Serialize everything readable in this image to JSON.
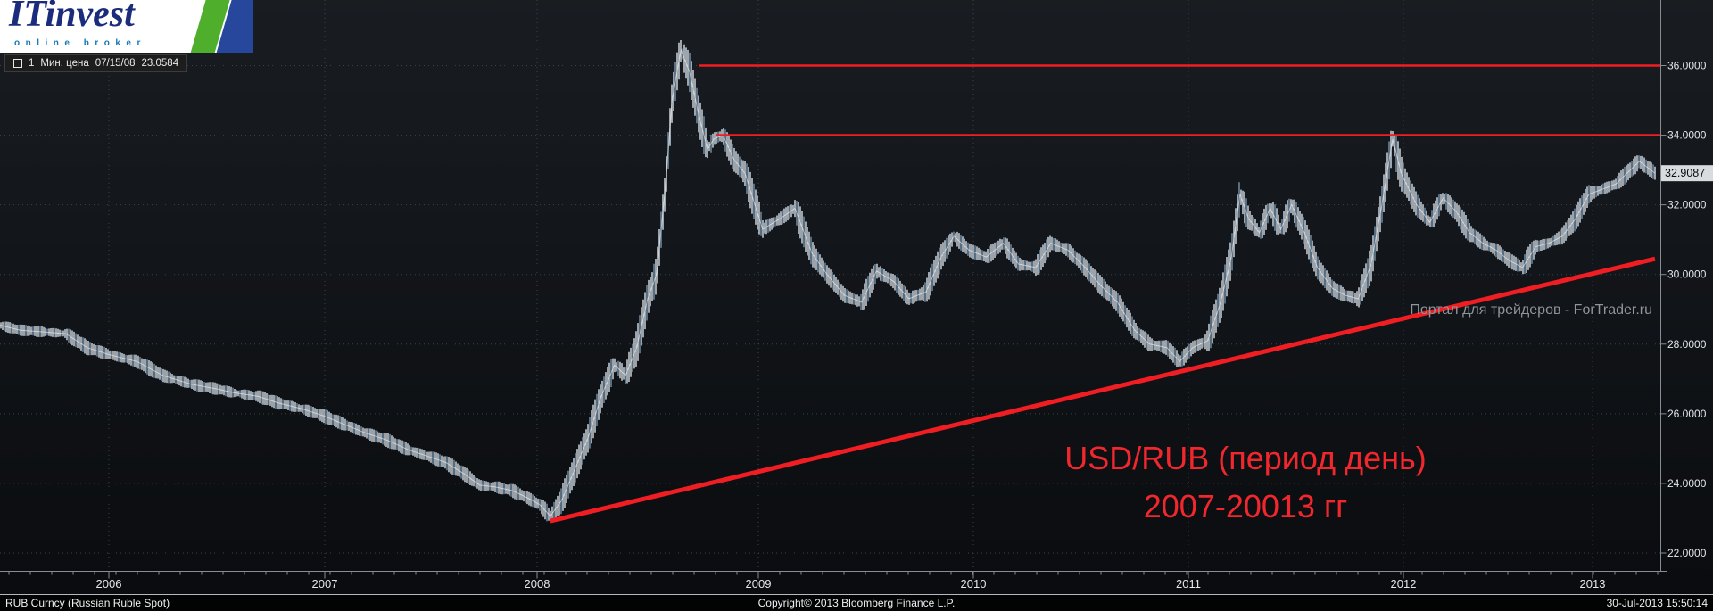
{
  "header": {
    "logo": {
      "title": "ITinvest",
      "subtitle": "online broker"
    },
    "info_bar": {
      "index": "1",
      "label": "Мин. цена",
      "date": "07/15/08",
      "value": "23.0584"
    }
  },
  "watermark": {
    "text": "Портал для трейдеров - ForTrader.ru"
  },
  "annotation": {
    "line1": "USD/RUB (период день)",
    "line2": "2007-20013 гг"
  },
  "footer": {
    "left": "RUB Curncy (Russian Ruble Spot)",
    "center": "Copyright© 2013 Bloomberg Finance L.P.",
    "right": "30-Jul-2013 15:50:14"
  },
  "colors": {
    "accent_red": "#f01d23",
    "bar_light": "#e8f1f8",
    "bar_blue": "#8db4d6",
    "grid": "#3d4249",
    "axis": "#878d94",
    "tick_text": "#e4e7ea",
    "watermark": "#8f969c",
    "label_bg": "#d8dcdf"
  },
  "chart_data": {
    "type": "line",
    "title": "USD/RUB (период день) 2007-20013 гг",
    "instrument": "RUB Curncy (Russian Ruble Spot)",
    "x_ticks": [
      "2006",
      "2007",
      "2008",
      "2009",
      "2010",
      "2011",
      "2012",
      "2013"
    ],
    "y_ticks": [
      "22.0000",
      "24.0000",
      "26.0000",
      "28.0000",
      "30.0000",
      "32.0000",
      "34.0000",
      "36.0000"
    ],
    "ylim": [
      21.5,
      37.9
    ],
    "grid": "dotted",
    "legend_position": "none",
    "last_price": "32.9087",
    "min_annotation": {
      "date": "07/15/08",
      "value": 23.0584
    },
    "resistance_levels": [
      {
        "level": 36.0,
        "start_year": 2009.23
      },
      {
        "level": 34.0,
        "start_year": 2009.31
      }
    ],
    "trendline": {
      "from": {
        "year": 2008.56,
        "value": 22.92
      },
      "to": {
        "year": 2013.58,
        "value": 30.45
      }
    },
    "series": [
      {
        "name": "USD/RUB",
        "points": [
          [
            2005.99,
            28.55
          ],
          [
            2006.09,
            28.4
          ],
          [
            2006.2,
            28.35
          ],
          [
            2006.3,
            28.3
          ],
          [
            2006.4,
            27.9
          ],
          [
            2006.5,
            27.7
          ],
          [
            2006.63,
            27.5
          ],
          [
            2006.75,
            27.1
          ],
          [
            2006.88,
            26.85
          ],
          [
            2007.01,
            26.7
          ],
          [
            2007.08,
            26.6
          ],
          [
            2007.19,
            26.5
          ],
          [
            2007.29,
            26.3
          ],
          [
            2007.39,
            26.15
          ],
          [
            2007.49,
            25.95
          ],
          [
            2007.59,
            25.7
          ],
          [
            2007.69,
            25.45
          ],
          [
            2007.79,
            25.25
          ],
          [
            2007.9,
            24.95
          ],
          [
            2008.0,
            24.75
          ],
          [
            2008.07,
            24.6
          ],
          [
            2008.15,
            24.3
          ],
          [
            2008.23,
            23.95
          ],
          [
            2008.3,
            23.9
          ],
          [
            2008.38,
            23.8
          ],
          [
            2008.45,
            23.6
          ],
          [
            2008.51,
            23.4
          ],
          [
            2008.56,
            23.06
          ],
          [
            2008.61,
            23.5
          ],
          [
            2008.67,
            24.4
          ],
          [
            2008.73,
            25.3
          ],
          [
            2008.79,
            26.5
          ],
          [
            2008.85,
            27.4
          ],
          [
            2008.9,
            27.1
          ],
          [
            2008.95,
            27.9
          ],
          [
            2009.0,
            29.3
          ],
          [
            2009.04,
            30.0
          ],
          [
            2009.08,
            32.5
          ],
          [
            2009.11,
            35.0
          ],
          [
            2009.15,
            36.45
          ],
          [
            2009.19,
            35.8
          ],
          [
            2009.23,
            34.6
          ],
          [
            2009.27,
            33.6
          ],
          [
            2009.3,
            33.9
          ],
          [
            2009.34,
            34.0
          ],
          [
            2009.39,
            33.3
          ],
          [
            2009.44,
            32.9
          ],
          [
            2009.52,
            31.3
          ],
          [
            2009.6,
            31.6
          ],
          [
            2009.67,
            31.9
          ],
          [
            2009.75,
            30.6
          ],
          [
            2009.82,
            30.0
          ],
          [
            2009.9,
            29.4
          ],
          [
            2009.98,
            29.2
          ],
          [
            2010.05,
            30.1
          ],
          [
            2010.13,
            29.8
          ],
          [
            2010.2,
            29.3
          ],
          [
            2010.28,
            29.5
          ],
          [
            2010.35,
            30.5
          ],
          [
            2010.41,
            31.1
          ],
          [
            2010.48,
            30.7
          ],
          [
            2010.56,
            30.5
          ],
          [
            2010.64,
            30.9
          ],
          [
            2010.71,
            30.3
          ],
          [
            2010.79,
            30.2
          ],
          [
            2010.86,
            30.9
          ],
          [
            2010.94,
            30.7
          ],
          [
            2011.02,
            30.2
          ],
          [
            2011.09,
            29.7
          ],
          [
            2011.17,
            29.2
          ],
          [
            2011.25,
            28.4
          ],
          [
            2011.32,
            28.0
          ],
          [
            2011.4,
            27.9
          ],
          [
            2011.46,
            27.5
          ],
          [
            2011.52,
            27.9
          ],
          [
            2011.59,
            28.1
          ],
          [
            2011.65,
            29.2
          ],
          [
            2011.7,
            30.5
          ],
          [
            2011.74,
            32.3
          ],
          [
            2011.78,
            31.6
          ],
          [
            2011.83,
            31.2
          ],
          [
            2011.88,
            31.9
          ],
          [
            2011.93,
            31.3
          ],
          [
            2011.98,
            32.0
          ],
          [
            2012.04,
            31.2
          ],
          [
            2012.1,
            30.2
          ],
          [
            2012.17,
            29.6
          ],
          [
            2012.23,
            29.4
          ],
          [
            2012.29,
            29.3
          ],
          [
            2012.35,
            30.3
          ],
          [
            2012.4,
            32.0
          ],
          [
            2012.45,
            33.9
          ],
          [
            2012.49,
            32.9
          ],
          [
            2012.57,
            32.0
          ],
          [
            2012.64,
            31.5
          ],
          [
            2012.71,
            32.2
          ],
          [
            2012.78,
            31.8
          ],
          [
            2012.85,
            31.2
          ],
          [
            2012.92,
            30.9
          ],
          [
            2012.99,
            30.7
          ],
          [
            2013.06,
            30.4
          ],
          [
            2013.13,
            30.2
          ],
          [
            2013.2,
            30.8
          ],
          [
            2013.27,
            30.9
          ],
          [
            2013.34,
            31.1
          ],
          [
            2013.41,
            31.6
          ],
          [
            2013.48,
            32.3
          ],
          [
            2013.53,
            32.6
          ],
          [
            2013.56,
            33.25
          ],
          [
            2013.58,
            32.91
          ]
        ]
      }
    ]
  }
}
